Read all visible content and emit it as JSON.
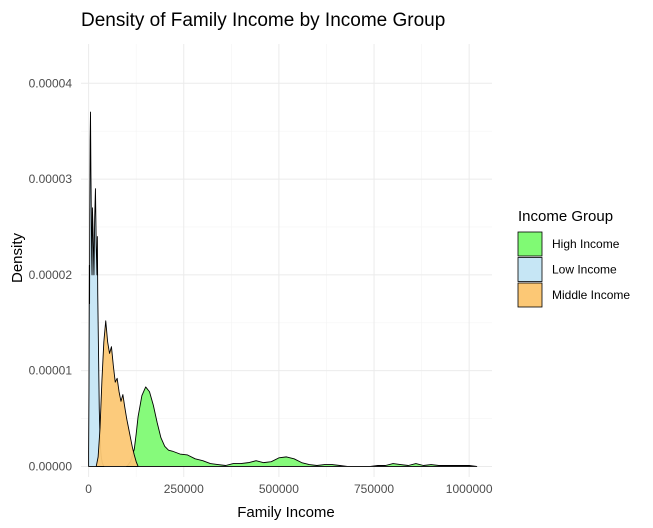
{
  "chart_data": {
    "type": "area",
    "subtype": "density",
    "title": "Density of Family Income by Income Group",
    "xlabel": "Family Income",
    "ylabel": "Density",
    "xlim": [
      -20000,
      1060000
    ],
    "ylim": [
      -1.1e-06,
      4.41e-05
    ],
    "x_ticks": [
      0,
      250000,
      500000,
      750000,
      1000000
    ],
    "x_tick_labels": [
      "0",
      "250000",
      "500000",
      "750000",
      "1000000"
    ],
    "y_ticks": [
      0,
      1e-05,
      2e-05,
      3e-05,
      4e-05
    ],
    "y_tick_labels": [
      "0.00000",
      "0.00001",
      "0.00002",
      "0.00003",
      "0.00004"
    ],
    "grid": true,
    "legend": {
      "title": "Income Group",
      "position": "right"
    },
    "series": [
      {
        "name": "Low Income",
        "color": "#c6e6f5",
        "x": [
          0,
          1000,
          2000,
          2500,
          3000,
          4000,
          5000,
          6000,
          8000,
          9000,
          10000,
          12000,
          14000,
          16000,
          18000,
          20000,
          22000,
          23000,
          24000,
          26000,
          28000,
          30000,
          32000,
          34000,
          36000,
          38000,
          40000
        ],
        "values": [
          1.5e-06,
          8e-06,
          2.1e-05,
          1.7e-05,
          2.6e-05,
          3.4e-05,
          3.7e-05,
          3.1e-05,
          2.2e-05,
          2e-05,
          2.7e-05,
          2.4e-05,
          2e-05,
          2.6e-05,
          2.9e-05,
          2.3e-05,
          2e-05,
          2.4e-05,
          1.8e-05,
          1.2e-05,
          6e-06,
          3e-06,
          1.5e-06,
          8e-07,
          4e-07,
          2e-07,
          0
        ]
      },
      {
        "name": "Middle Income",
        "color": "#fcc875",
        "x": [
          20000,
          25000,
          30000,
          35000,
          40000,
          45000,
          50000,
          55000,
          60000,
          65000,
          70000,
          75000,
          80000,
          85000,
          90000,
          95000,
          100000,
          105000,
          110000,
          115000,
          120000,
          125000,
          130000
        ],
        "values": [
          0,
          1e-06,
          4e-06,
          9e-06,
          1.3e-05,
          1.52e-05,
          1.3e-05,
          1.18e-05,
          1.25e-05,
          1.05e-05,
          8.8e-06,
          9.2e-06,
          7.8e-06,
          6.8e-06,
          7.5e-06,
          6.2e-06,
          5e-06,
          4e-06,
          3e-06,
          2e-06,
          1.2e-06,
          5e-07,
          0
        ]
      },
      {
        "name": "High Income",
        "color": "#80fa74",
        "x": [
          100000,
          110000,
          120000,
          125000,
          130000,
          140000,
          150000,
          160000,
          170000,
          180000,
          190000,
          200000,
          210000,
          220000,
          240000,
          260000,
          280000,
          300000,
          320000,
          340000,
          360000,
          380000,
          400000,
          420000,
          440000,
          460000,
          480000,
          500000,
          520000,
          540000,
          560000,
          580000,
          600000,
          620000,
          640000,
          660000,
          680000,
          700000,
          720000,
          740000,
          760000,
          780000,
          800000,
          820000,
          840000,
          860000,
          880000,
          900000,
          920000,
          940000,
          960000,
          980000,
          1000000,
          1020000
        ],
        "values": [
          0,
          5e-07,
          1.8e-06,
          3.4e-06,
          5.2e-06,
          7.4e-06,
          8.3e-06,
          7.8e-06,
          6.4e-06,
          4.6e-06,
          3e-06,
          2.1e-06,
          1.7e-06,
          1.6e-06,
          1.3e-06,
          1.2e-06,
          8e-07,
          6e-07,
          3e-07,
          2e-07,
          1e-07,
          3e-07,
          3e-07,
          4e-07,
          6e-07,
          4e-07,
          5e-07,
          9e-07,
          1e-06,
          8e-07,
          4e-07,
          2e-07,
          1e-07,
          2e-07,
          2e-07,
          1e-07,
          0,
          0,
          0,
          0,
          1e-07,
          1e-07,
          3e-07,
          2e-07,
          1e-07,
          3e-07,
          1e-07,
          2e-07,
          1e-07,
          1e-07,
          1e-07,
          1e-07,
          1e-07,
          0
        ]
      }
    ],
    "legend_order": [
      "High Income",
      "Low Income",
      "Middle Income"
    ]
  }
}
